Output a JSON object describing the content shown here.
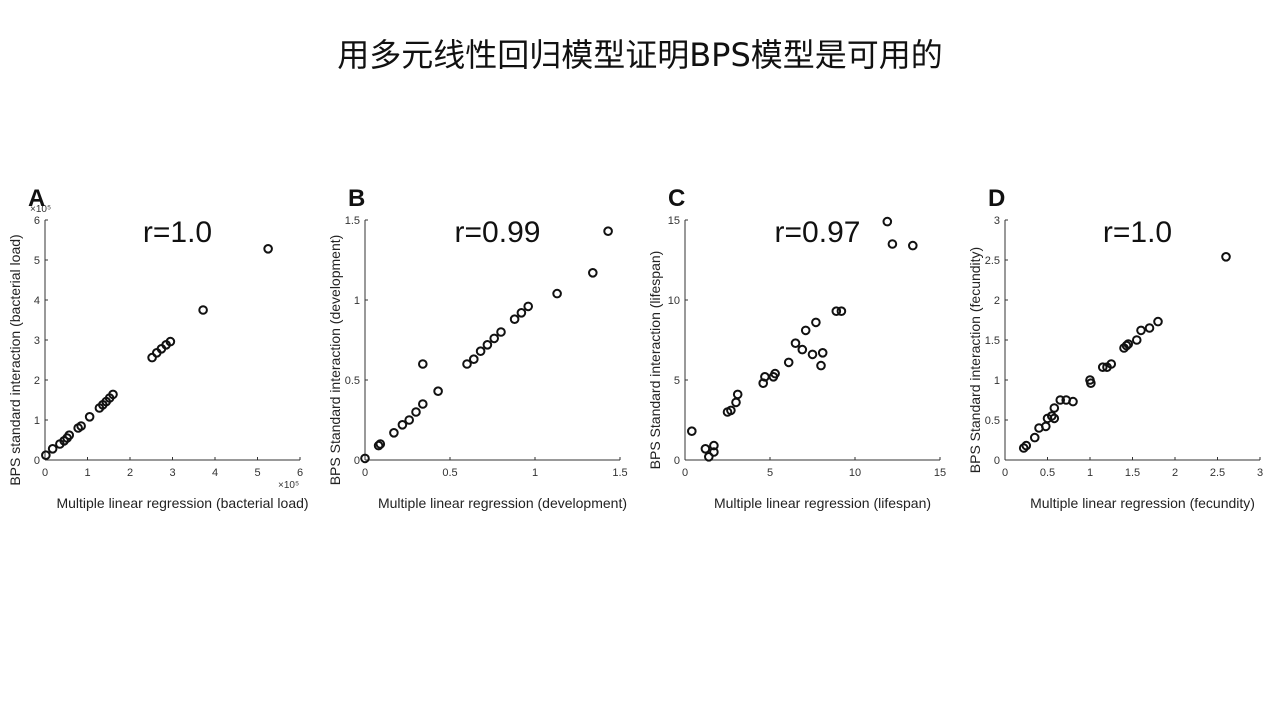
{
  "slide_title": "用多元线性回归模型证明BPS模型是可用的",
  "chart_data": [
    {
      "type": "scatter",
      "panel": "A",
      "annotation": "r=1.0",
      "xlabel": "Multiple linear regression (bacterial load)",
      "ylabel": "BPS standard interaction (bacterial load)",
      "xlim": [
        0,
        6
      ],
      "ylim": [
        0,
        6
      ],
      "xticks": [
        0,
        1,
        2,
        3,
        4,
        5,
        6
      ],
      "yticks": [
        0,
        1,
        2,
        3,
        4,
        5,
        6
      ],
      "x_multiplier": "×10⁵",
      "y_multiplier": "×10⁵",
      "grid": false,
      "series": [
        {
          "x": [
            0.02,
            0.18,
            0.35,
            0.45,
            0.52,
            0.57,
            0.78,
            0.85,
            1.05,
            1.28,
            1.36,
            1.44,
            1.52,
            1.6,
            2.52,
            2.63,
            2.74,
            2.85,
            2.95,
            3.72,
            5.25
          ],
          "y": [
            0.12,
            0.28,
            0.4,
            0.48,
            0.55,
            0.62,
            0.8,
            0.85,
            1.08,
            1.3,
            1.38,
            1.46,
            1.55,
            1.64,
            2.56,
            2.68,
            2.78,
            2.88,
            2.96,
            3.75,
            5.28
          ]
        }
      ]
    },
    {
      "type": "scatter",
      "panel": "B",
      "annotation": "r=0.99",
      "xlabel": "Multiple linear regression (development)",
      "ylabel": "BPS Standard interaction (development)",
      "xlim": [
        0,
        1.5
      ],
      "ylim": [
        0,
        1.5
      ],
      "xticks": [
        0,
        0.5,
        1,
        1.5
      ],
      "yticks": [
        0,
        0.5,
        1,
        1.5
      ],
      "grid": false,
      "series": [
        {
          "x": [
            0.0,
            0.08,
            0.09,
            0.17,
            0.22,
            0.26,
            0.3,
            0.34,
            0.34,
            0.43,
            0.6,
            0.64,
            0.68,
            0.72,
            0.76,
            0.8,
            0.88,
            0.92,
            0.96,
            1.13,
            1.34,
            1.43
          ],
          "y": [
            0.01,
            0.09,
            0.1,
            0.17,
            0.22,
            0.25,
            0.3,
            0.35,
            0.6,
            0.43,
            0.6,
            0.63,
            0.68,
            0.72,
            0.76,
            0.8,
            0.88,
            0.92,
            0.96,
            1.04,
            1.17,
            1.43
          ]
        }
      ]
    },
    {
      "type": "scatter",
      "panel": "C",
      "annotation": "r=0.97",
      "xlabel": "Multiple linear regression (lifespan)",
      "ylabel": "BPS Standard interaction (lifespan)",
      "xlim": [
        0,
        15
      ],
      "ylim": [
        0,
        15
      ],
      "xticks": [
        0,
        5,
        10,
        15
      ],
      "yticks": [
        0,
        5,
        10,
        15
      ],
      "grid": false,
      "series": [
        {
          "x": [
            0.4,
            1.2,
            1.4,
            1.7,
            1.7,
            2.5,
            2.7,
            3.0,
            3.1,
            4.6,
            4.7,
            5.2,
            5.3,
            6.1,
            6.5,
            6.9,
            7.1,
            7.5,
            7.7,
            8.0,
            8.1,
            8.9,
            9.2,
            11.9,
            12.2,
            13.4
          ],
          "y": [
            1.8,
            0.7,
            0.2,
            0.9,
            0.5,
            3.0,
            3.1,
            3.6,
            4.1,
            4.8,
            5.2,
            5.2,
            5.4,
            6.1,
            7.3,
            6.9,
            8.1,
            6.6,
            8.6,
            5.9,
            6.7,
            9.3,
            9.3,
            14.9,
            13.5,
            13.4
          ]
        }
      ]
    },
    {
      "type": "scatter",
      "panel": "D",
      "annotation": "r=1.0",
      "xlabel": "Multiple linear regression (fecundity)",
      "ylabel": "BPS Standard interaction (fecundity)",
      "xlim": [
        0,
        3
      ],
      "ylim": [
        0,
        3
      ],
      "xticks": [
        0,
        0.5,
        1,
        1.5,
        2,
        2.5,
        3
      ],
      "yticks": [
        0,
        0.5,
        1,
        1.5,
        2,
        2.5,
        3
      ],
      "grid": false,
      "series": [
        {
          "x": [
            0.22,
            0.25,
            0.35,
            0.4,
            0.48,
            0.5,
            0.55,
            0.58,
            0.58,
            0.65,
            0.72,
            0.8,
            1.0,
            1.01,
            1.15,
            1.2,
            1.25,
            1.4,
            1.43,
            1.45,
            1.55,
            1.6,
            1.7,
            1.8,
            2.6
          ],
          "y": [
            0.15,
            0.18,
            0.28,
            0.4,
            0.42,
            0.52,
            0.55,
            0.52,
            0.65,
            0.75,
            0.75,
            0.73,
            1.0,
            0.96,
            1.16,
            1.16,
            1.2,
            1.4,
            1.43,
            1.45,
            1.5,
            1.62,
            1.65,
            1.73,
            2.54
          ]
        }
      ]
    }
  ]
}
